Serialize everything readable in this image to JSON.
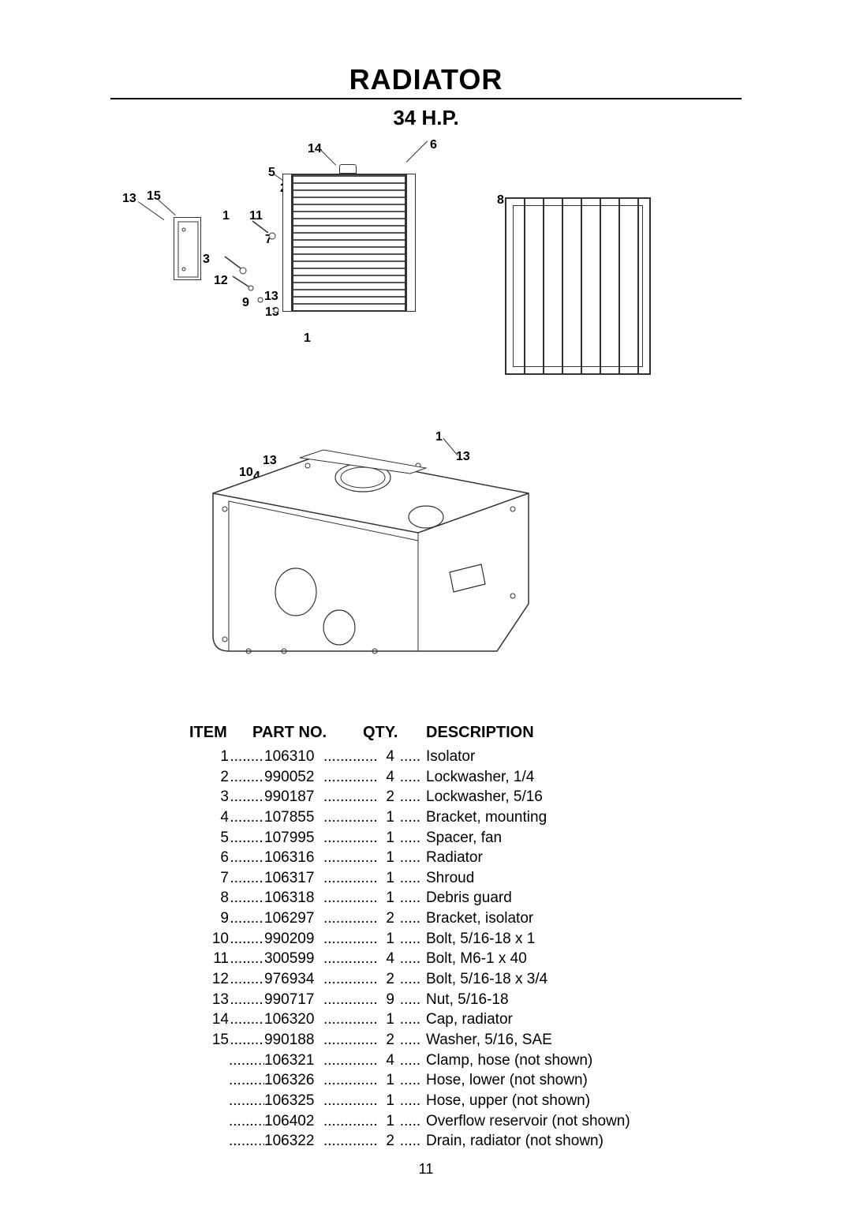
{
  "title": "RADIATOR",
  "subtitle": "34 H.P.",
  "page_number": "11",
  "callouts": {
    "c14": "14",
    "c6": "6",
    "c5": "5",
    "c2": "2",
    "c8": "8",
    "c13a": "13",
    "c15": "15",
    "c1a": "1",
    "c11": "11",
    "c7": "7",
    "c3": "3",
    "c12": "12",
    "c9": "9",
    "c13b": "13",
    "c13c": "13",
    "c1b": "1",
    "c1c": "1",
    "c13d": "13",
    "c13e": "13",
    "c10": "10",
    "c4": "4"
  },
  "table": {
    "headers": {
      "item": "ITEM",
      "partno": "PART NO.",
      "qty": "QTY.",
      "description": "DESCRIPTION"
    },
    "rows": [
      {
        "item": "1",
        "partno": "106310",
        "qty": "4",
        "desc": "Isolator"
      },
      {
        "item": "2",
        "partno": "990052",
        "qty": "4",
        "desc": "Lockwasher, 1/4"
      },
      {
        "item": "3",
        "partno": "990187",
        "qty": "2",
        "desc": "Lockwasher, 5/16"
      },
      {
        "item": "4",
        "partno": "107855",
        "qty": "1",
        "desc": "Bracket, mounting"
      },
      {
        "item": "5",
        "partno": "107995",
        "qty": "1",
        "desc": "Spacer, fan"
      },
      {
        "item": "6",
        "partno": "106316",
        "qty": "1",
        "desc": "Radiator"
      },
      {
        "item": "7",
        "partno": "106317",
        "qty": "1",
        "desc": "Shroud"
      },
      {
        "item": "8",
        "partno": "106318",
        "qty": "1",
        "desc": "Debris guard"
      },
      {
        "item": "9",
        "partno": "106297",
        "qty": "2",
        "desc": "Bracket, isolator"
      },
      {
        "item": "10",
        "partno": "990209",
        "qty": "1",
        "desc": "Bolt, 5/16-18 x 1"
      },
      {
        "item": "11",
        "partno": "300599",
        "qty": "4",
        "desc": "Bolt, M6-1 x 40"
      },
      {
        "item": "12",
        "partno": "976934",
        "qty": "2",
        "desc": "Bolt, 5/16-18 x 3/4"
      },
      {
        "item": "13",
        "partno": "990717",
        "qty": "9",
        "desc": "Nut, 5/16-18"
      },
      {
        "item": "14",
        "partno": "106320",
        "qty": "1",
        "desc": "Cap, radiator"
      },
      {
        "item": "15",
        "partno": "990188",
        "qty": "2",
        "desc": "Washer, 5/16, SAE"
      },
      {
        "item": "",
        "partno": "106321",
        "qty": "4",
        "desc": "Clamp, hose (not shown)"
      },
      {
        "item": "",
        "partno": "106326",
        "qty": "1",
        "desc": "Hose, lower (not shown)"
      },
      {
        "item": "",
        "partno": "106325",
        "qty": "1",
        "desc": "Hose, upper (not shown)"
      },
      {
        "item": "",
        "partno": "106402",
        "qty": "1",
        "desc": "Overflow reservoir (not shown)"
      },
      {
        "item": "",
        "partno": "106322",
        "qty": "2",
        "desc": "Drain, radiator (not shown)"
      }
    ]
  },
  "styling": {
    "title_fontsize": 36,
    "subtitle_fontsize": 26,
    "body_fontsize": 19,
    "callout_fontsize": 16,
    "text_color": "#000000",
    "background_color": "#ffffff",
    "line_color": "#333333"
  }
}
